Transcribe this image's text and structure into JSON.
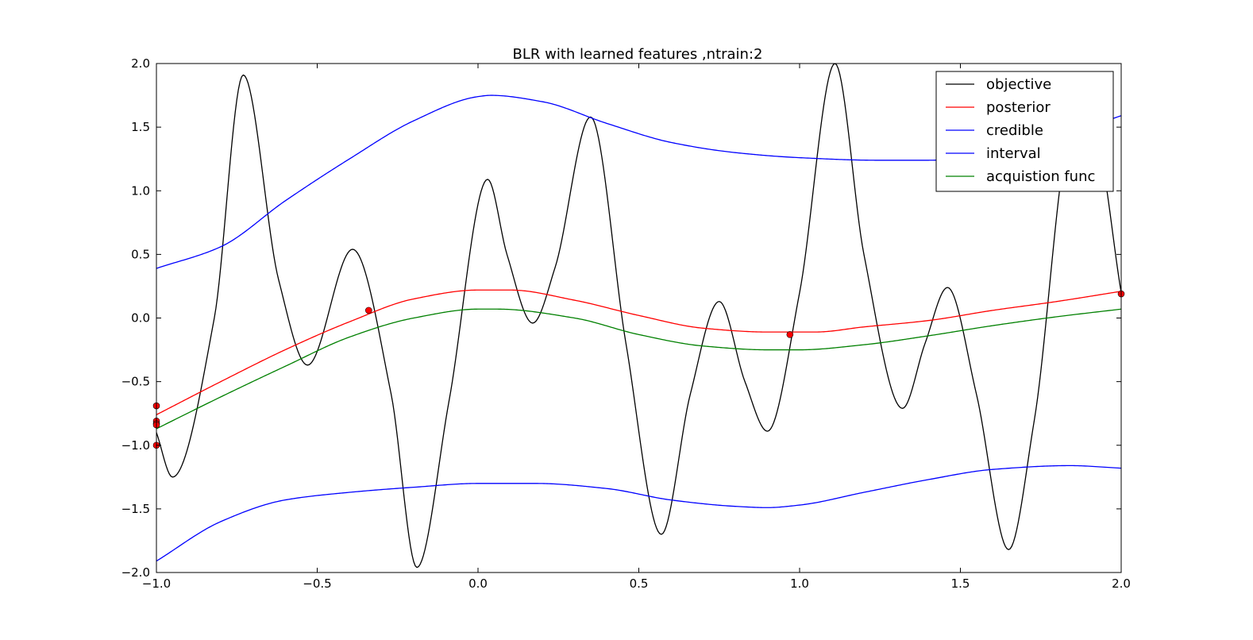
{
  "chart_data": {
    "type": "line",
    "title": "BLR with learned features ,ntrain:2",
    "xlabel": "",
    "ylabel": "",
    "xlim": [
      -1.0,
      2.0
    ],
    "ylim": [
      -2.0,
      2.0
    ],
    "xticks": [
      -1.0,
      -0.5,
      0.0,
      0.5,
      1.0,
      1.5,
      2.0
    ],
    "xtick_labels": [
      "−1.0",
      "−0.5",
      "0.0",
      "0.5",
      "1.0",
      "1.5",
      "2.0"
    ],
    "yticks": [
      2.0,
      1.5,
      1.0,
      0.5,
      0.0,
      -0.5,
      -1.0,
      -1.5,
      -2.0
    ],
    "ytick_labels": [
      "2.0",
      "1.5",
      "1.0",
      "0.5",
      "0.0",
      "−0.5",
      "−1.0",
      "−1.5",
      "−2.0"
    ],
    "grid": false,
    "legend_position": "top-right",
    "legend": [
      {
        "label": "objective",
        "color": "#000000"
      },
      {
        "label": "posterior",
        "color": "#ff0000"
      },
      {
        "label": "credible",
        "color": "#0000ff"
      },
      {
        "label": "interval",
        "color": "#0000ff"
      },
      {
        "label": "acquistion func",
        "color": "#008000"
      }
    ],
    "series": [
      {
        "name": "objective",
        "color": "#000000",
        "x": [
          -1.0,
          -0.95,
          -0.82,
          -0.73,
          -0.62,
          -0.53,
          -0.39,
          -0.27,
          -0.19,
          -0.09,
          0.03,
          0.09,
          0.17,
          0.24,
          0.35,
          0.46,
          0.57,
          0.66,
          0.75,
          0.83,
          0.9,
          1.0,
          1.11,
          1.2,
          1.32,
          1.39,
          1.46,
          1.55,
          1.65,
          1.73,
          1.85,
          1.92,
          2.0
        ],
        "y": [
          -0.9,
          -1.25,
          0.0,
          1.91,
          0.3,
          -0.37,
          0.54,
          -0.6,
          -1.96,
          -0.65,
          1.09,
          0.5,
          -0.04,
          0.4,
          1.58,
          -0.2,
          -1.7,
          -0.6,
          0.13,
          -0.5,
          -0.89,
          0.2,
          2.0,
          0.5,
          -0.71,
          -0.2,
          0.24,
          -0.6,
          -1.82,
          -0.8,
          1.5,
          1.4,
          0.2
        ]
      },
      {
        "name": "posterior",
        "color": "#ff0000",
        "x": [
          -1.0,
          -0.8,
          -0.6,
          -0.4,
          -0.2,
          0.0,
          0.1,
          0.3,
          0.5,
          0.7,
          0.9,
          1.05,
          1.2,
          1.4,
          1.6,
          1.8,
          2.0
        ],
        "y": [
          -0.76,
          -0.5,
          -0.25,
          -0.03,
          0.15,
          0.22,
          0.22,
          0.14,
          0.02,
          -0.08,
          -0.11,
          -0.11,
          -0.07,
          -0.02,
          0.06,
          0.13,
          0.21
        ]
      },
      {
        "name": "credible",
        "color": "#0000ff",
        "x": [
          -1.0,
          -0.8,
          -0.6,
          -0.4,
          -0.2,
          0.0,
          0.04,
          0.2,
          0.4,
          0.6,
          0.8,
          1.0,
          1.24,
          1.4,
          1.6,
          1.8,
          2.0
        ],
        "y": [
          0.39,
          0.56,
          0.92,
          1.25,
          1.55,
          1.74,
          1.75,
          1.7,
          1.53,
          1.38,
          1.3,
          1.26,
          1.24,
          1.24,
          1.28,
          1.42,
          1.59
        ]
      },
      {
        "name": "interval",
        "color": "#0000ff",
        "x": [
          -1.0,
          -0.8,
          -0.6,
          -0.4,
          -0.2,
          0.0,
          0.18,
          0.4,
          0.6,
          0.8,
          0.9,
          1.0,
          1.2,
          1.4,
          1.6,
          1.84,
          2.0
        ],
        "y": [
          -1.91,
          -1.6,
          -1.43,
          -1.37,
          -1.33,
          -1.3,
          -1.3,
          -1.34,
          -1.43,
          -1.48,
          -1.49,
          -1.47,
          -1.37,
          -1.27,
          -1.19,
          -1.16,
          -1.18
        ]
      },
      {
        "name": "acquistion func",
        "color": "#008000",
        "x": [
          -1.0,
          -0.8,
          -0.6,
          -0.4,
          -0.2,
          0.0,
          0.06,
          0.3,
          0.5,
          0.7,
          0.9,
          1.0,
          1.2,
          1.4,
          1.6,
          1.8,
          2.0
        ],
        "y": [
          -0.87,
          -0.62,
          -0.38,
          -0.15,
          0.0,
          0.07,
          0.07,
          0.0,
          -0.13,
          -0.22,
          -0.25,
          -0.25,
          -0.21,
          -0.14,
          -0.06,
          0.01,
          0.07
        ]
      }
    ],
    "train_points": {
      "color": "#ff0000",
      "x": [
        -1.0,
        -1.0,
        -1.0,
        -1.0,
        -1.0,
        -0.34,
        0.97,
        2.0
      ],
      "y": [
        -0.69,
        -0.81,
        -0.83,
        -0.84,
        -1.0,
        0.06,
        -0.13,
        0.19
      ]
    }
  }
}
